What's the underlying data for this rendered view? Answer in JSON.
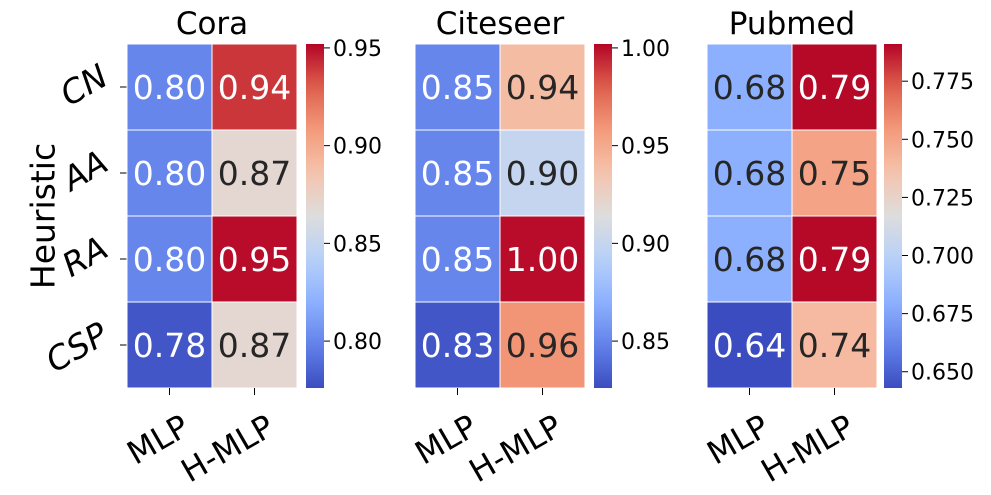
{
  "chart_data": {
    "type": "heatmap",
    "ylabel": "Heuristic",
    "row_labels": [
      "CN",
      "AA",
      "RA",
      "CSP"
    ],
    "col_labels": [
      "MLP",
      "H-MLP"
    ],
    "colormap": "coolwarm",
    "colors": {
      "low": "#3b4cc0",
      "mid": "#dddddd",
      "high": "#b40426",
      "gridline": "#ffffff",
      "text_dark": "#262626",
      "text_light": "#ffffff"
    },
    "panels": [
      {
        "title": "Cora",
        "values": [
          [
            0.8,
            0.94
          ],
          [
            0.8,
            0.87
          ],
          [
            0.8,
            0.95
          ],
          [
            0.78,
            0.87
          ]
        ],
        "cell_labels": [
          [
            "0.80",
            "0.94"
          ],
          [
            "0.80",
            "0.87"
          ],
          [
            "0.80",
            "0.95"
          ],
          [
            "0.78",
            "0.87"
          ]
        ],
        "vmin": 0.776,
        "vmax": 0.952,
        "colorbar_ticks": [
          0.8,
          0.85,
          0.9,
          0.95
        ],
        "colorbar_tick_labels": [
          "0.80",
          "0.85",
          "0.90",
          "0.95"
        ]
      },
      {
        "title": "Citeseer",
        "values": [
          [
            0.85,
            0.94
          ],
          [
            0.85,
            0.9
          ],
          [
            0.85,
            1.0
          ],
          [
            0.83,
            0.96
          ]
        ],
        "cell_labels": [
          [
            "0.85",
            "0.94"
          ],
          [
            "0.85",
            "0.90"
          ],
          [
            "0.85",
            "1.00"
          ],
          [
            "0.83",
            "0.96"
          ]
        ],
        "vmin": 0.826,
        "vmax": 1.002,
        "colorbar_ticks": [
          0.85,
          0.9,
          0.95,
          1.0
        ],
        "colorbar_tick_labels": [
          "0.85",
          "0.90",
          "0.95",
          "1.00"
        ]
      },
      {
        "title": "Pubmed",
        "values": [
          [
            0.68,
            0.79
          ],
          [
            0.68,
            0.75
          ],
          [
            0.68,
            0.79
          ],
          [
            0.64,
            0.74
          ]
        ],
        "cell_labels": [
          [
            "0.68",
            "0.79"
          ],
          [
            "0.68",
            "0.75"
          ],
          [
            "0.68",
            "0.79"
          ],
          [
            "0.64",
            "0.74"
          ]
        ],
        "vmin": 0.643,
        "vmax": 0.791,
        "colorbar_ticks": [
          0.65,
          0.675,
          0.7,
          0.725,
          0.75,
          0.775
        ],
        "colorbar_tick_labels": [
          "0.650",
          "0.675",
          "0.700",
          "0.725",
          "0.750",
          "0.775"
        ]
      }
    ]
  }
}
